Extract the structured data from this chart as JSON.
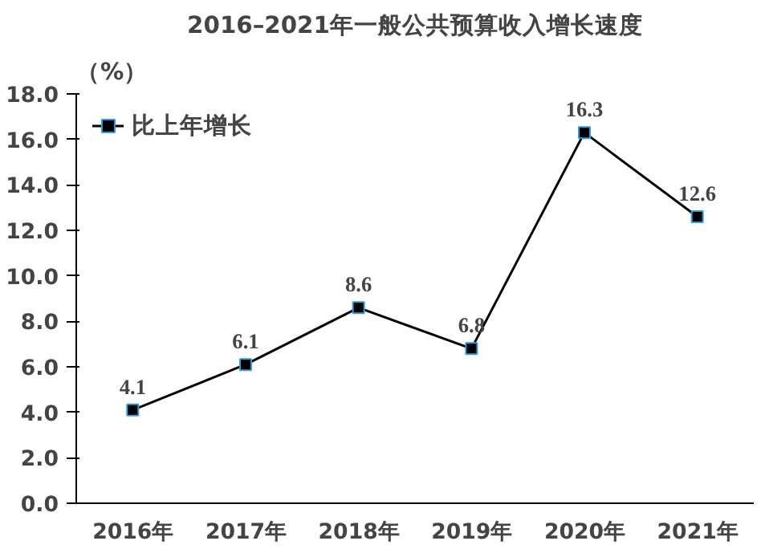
{
  "chart_data": {
    "type": "line",
    "title": "2016–2021年一般公共预算收入增长速度",
    "ylabel": "（%）",
    "categories": [
      "2016年",
      "2017年",
      "2018年",
      "2019年",
      "2020年",
      "2021年"
    ],
    "series": [
      {
        "name": "比上年增长",
        "color": "#000000",
        "values": [
          4.1,
          6.1,
          8.6,
          6.8,
          16.3,
          12.6
        ]
      }
    ],
    "ylim": [
      0,
      18
    ],
    "yticks": [
      {
        "value": 0,
        "label": "0.0"
      },
      {
        "value": 2,
        "label": "2.0"
      },
      {
        "value": 4,
        "label": "4.0"
      },
      {
        "value": 6,
        "label": "6.0"
      },
      {
        "value": 8,
        "label": "8.0"
      },
      {
        "value": 10,
        "label": "10.0"
      },
      {
        "value": 12,
        "label": "12.0"
      },
      {
        "value": 14,
        "label": "14.0"
      },
      {
        "value": 16,
        "label": "16.0"
      },
      {
        "value": 18,
        "label": "18.0"
      }
    ],
    "data_labels": true,
    "marker": "square",
    "legend": "top left",
    "grid": false
  }
}
